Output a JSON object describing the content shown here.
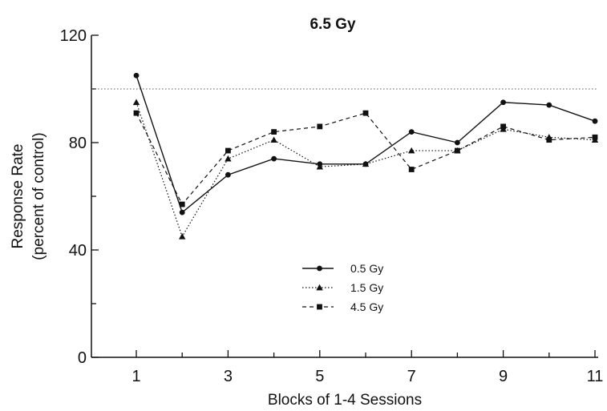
{
  "chart_data": {
    "type": "line",
    "title": "6.5 Gy",
    "xlabel": "Blocks of 1-4 Sessions",
    "ylabel_line1": "Response Rate",
    "ylabel_line2": "(percent of control)",
    "x": [
      1,
      2,
      3,
      4,
      5,
      6,
      7,
      8,
      9,
      10,
      11
    ],
    "xlim": [
      0,
      11
    ],
    "ylim": [
      0,
      120
    ],
    "x_ticks_major": [
      1,
      3,
      5,
      7,
      9,
      11
    ],
    "x_tick_labels": [
      "1",
      "3",
      "5",
      "7",
      "9",
      "11"
    ],
    "y_ticks_major": [
      0,
      40,
      80,
      120
    ],
    "y_tick_labels": [
      "0",
      "40",
      "80",
      "120"
    ],
    "reference_line": 100,
    "grid": false,
    "legend_position": "center",
    "series": [
      {
        "name": "0.5 Gy",
        "marker": "circle",
        "line_style": "solid",
        "values": [
          105,
          54,
          68,
          74,
          72,
          72,
          84,
          80,
          95,
          94,
          88
        ]
      },
      {
        "name": "1.5 Gy",
        "marker": "triangle",
        "line_style": "dotted",
        "values": [
          95,
          45,
          74,
          81,
          71,
          72,
          77,
          77,
          85,
          82,
          81
        ]
      },
      {
        "name": "4.5 Gy",
        "marker": "square",
        "line_style": "dashed",
        "values": [
          91,
          57,
          77,
          84,
          86,
          91,
          70,
          77,
          86,
          81,
          82
        ]
      }
    ]
  }
}
